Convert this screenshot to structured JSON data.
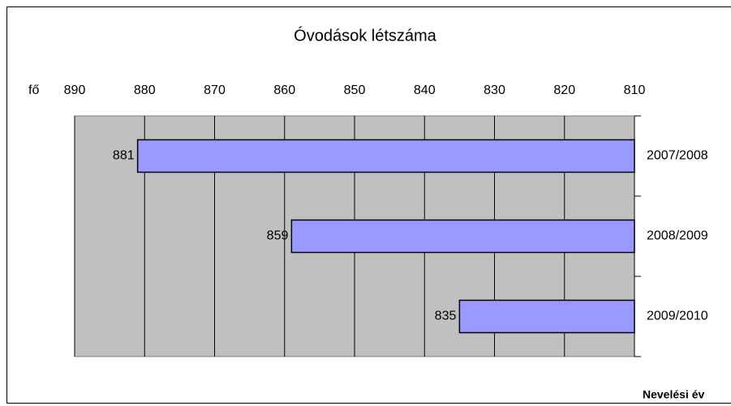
{
  "chart_data": {
    "type": "barh",
    "title": "Óvodások létszáma",
    "categories": [
      "2007/2008",
      "2008/2009",
      "2009/2010"
    ],
    "values": [
      881,
      859,
      835
    ],
    "color": "#9999ff",
    "xlim": [
      890,
      810
    ],
    "xticks": [
      890,
      880,
      870,
      860,
      850,
      840,
      830,
      820,
      810
    ],
    "x_label": "fő",
    "y_label": "Nevelési év",
    "grid": true,
    "plot_background": "#c0c0c0"
  }
}
